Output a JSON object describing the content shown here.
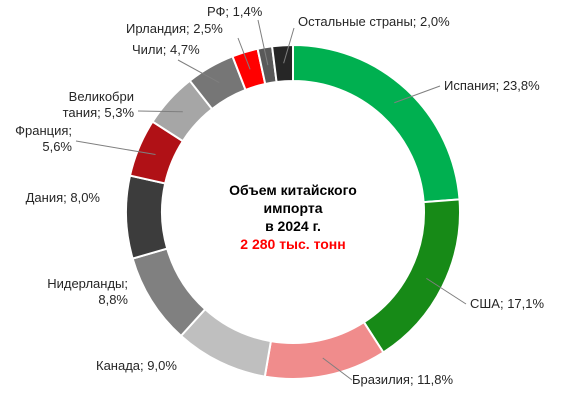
{
  "chart_data": {
    "type": "pie",
    "variant": "donut",
    "title_lines": [
      "Объем китайского",
      "импорта",
      "в 2024 г."
    ],
    "total_label": "2 280 тыс. тонн",
    "unit": "%",
    "slices": [
      {
        "name": "Испания",
        "value": 23.8,
        "text": "Испания; 23,8%",
        "color": "#00b050"
      },
      {
        "name": "США",
        "value": 17.1,
        "text": "США; 17,1%",
        "color": "#178a17"
      },
      {
        "name": "Бразилия",
        "value": 11.8,
        "text": "Бразилия; 11,8%",
        "color": "#f08c8c"
      },
      {
        "name": "Канада",
        "value": 9.0,
        "text": "Канада; 9,0%",
        "color": "#bfbfbf"
      },
      {
        "name": "Нидерланды",
        "value": 8.8,
        "text": "Нидерланды; 8,8%",
        "color": "#808080"
      },
      {
        "name": "Дания",
        "value": 8.0,
        "text": "Дания; 8,0%",
        "color": "#3c3c3c"
      },
      {
        "name": "Франция",
        "value": 5.6,
        "text": "Франция; 5,6%",
        "color": "#b01116"
      },
      {
        "name": "Великобритания",
        "value": 5.3,
        "text": "Великобри тания; 5,3%",
        "color": "#a6a6a6"
      },
      {
        "name": "Чили",
        "value": 4.7,
        "text": "Чили; 4,7%",
        "color": "#767676"
      },
      {
        "name": "Ирландия",
        "value": 2.5,
        "text": "Ирландия; 2,5%",
        "color": "#ff0000"
      },
      {
        "name": "РФ",
        "value": 1.4,
        "text": "РФ; 1,4%",
        "color": "#595959"
      },
      {
        "name": "Остальные страны",
        "value": 2.0,
        "text": "Остальные страны; 2,0%",
        "color": "#262626"
      }
    ]
  }
}
